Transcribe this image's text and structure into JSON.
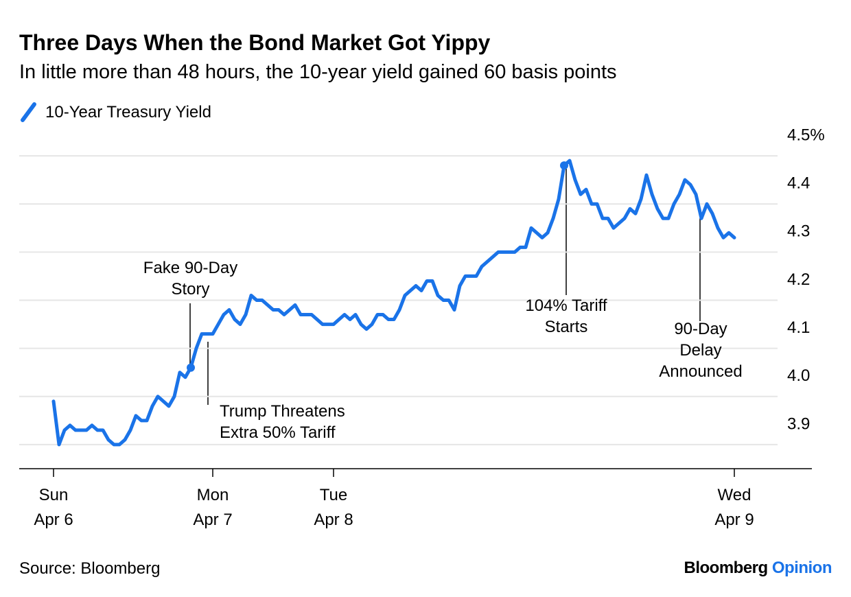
{
  "chart_data": {
    "type": "line",
    "title": "Three Days When the Bond Market Got Yippy",
    "subtitle": "In little more than 48 hours, the 10-year yield gained 60 basis points",
    "source": "Source: Bloomberg",
    "brand": [
      "Bloomberg",
      "Opinion"
    ],
    "categories": [
      "Sun Apr 6",
      null,
      null,
      null,
      null,
      null,
      null,
      null,
      null,
      null,
      null,
      null,
      null,
      null,
      null,
      null,
      null,
      null,
      null,
      null,
      null,
      null,
      null,
      null,
      null,
      null,
      null,
      null,
      null,
      "Mon Apr 7",
      null,
      null,
      null,
      null,
      null,
      null,
      null,
      null,
      null,
      null,
      null,
      null,
      null,
      null,
      null,
      null,
      null,
      null,
      null,
      null,
      null,
      "Tue Apr 8",
      null,
      null,
      null,
      null,
      null,
      null,
      null,
      null,
      null,
      null,
      null,
      null,
      null,
      null,
      null,
      null,
      null,
      null,
      null,
      null,
      null,
      null,
      null,
      null,
      null,
      null,
      null,
      null,
      null,
      null,
      null,
      null,
      null,
      null,
      null,
      null,
      null,
      null,
      null,
      null,
      null,
      null,
      null,
      null,
      null,
      null,
      null,
      null,
      null,
      null,
      null,
      null,
      null,
      null,
      null,
      null,
      null,
      null,
      null,
      null,
      null,
      null,
      null,
      null,
      null,
      null,
      null,
      null,
      null,
      null,
      null,
      null,
      "Wed Apr 9"
    ],
    "series": [
      {
        "name": "10-Year Treasury Yield",
        "color": "#1a73e8",
        "values": [
          3.99,
          3.9,
          3.93,
          3.94,
          3.93,
          3.93,
          3.93,
          3.94,
          3.93,
          3.93,
          3.91,
          3.9,
          3.9,
          3.91,
          3.93,
          3.96,
          3.95,
          3.95,
          3.98,
          4.0,
          3.99,
          3.98,
          4.0,
          4.05,
          4.04,
          4.06,
          4.1,
          4.13,
          4.13,
          4.13,
          4.15,
          4.17,
          4.18,
          4.16,
          4.15,
          4.17,
          4.21,
          4.2,
          4.2,
          4.19,
          4.18,
          4.18,
          4.17,
          4.18,
          4.19,
          4.17,
          4.17,
          4.17,
          4.16,
          4.15,
          4.15,
          4.15,
          4.16,
          4.17,
          4.16,
          4.17,
          4.15,
          4.14,
          4.15,
          4.17,
          4.17,
          4.16,
          4.16,
          4.18,
          4.21,
          4.22,
          4.23,
          4.22,
          4.24,
          4.24,
          4.21,
          4.2,
          4.2,
          4.18,
          4.23,
          4.25,
          4.25,
          4.25,
          4.27,
          4.28,
          4.29,
          4.3,
          4.3,
          4.3,
          4.3,
          4.31,
          4.31,
          4.35,
          4.34,
          4.33,
          4.34,
          4.37,
          4.41,
          4.48,
          4.49,
          4.45,
          4.42,
          4.43,
          4.4,
          4.4,
          4.37,
          4.37,
          4.35,
          4.36,
          4.37,
          4.39,
          4.38,
          4.41,
          4.46,
          4.42,
          4.39,
          4.37,
          4.37,
          4.4,
          4.42,
          4.45,
          4.44,
          4.42,
          4.37,
          4.4,
          4.38,
          4.35,
          4.33,
          4.34,
          4.33
        ]
      }
    ],
    "annotations": [
      "Fake 90-Day Story",
      "Trump Threatens Extra 50% Tariff",
      "104% Tariff Starts",
      "90-Day Delay Announced"
    ],
    "ylim": [
      3.85,
      4.55
    ],
    "yticks": [
      3.9,
      {
        "value": 4,
        "label": "4.0"
      },
      4.1,
      4.2,
      4.3,
      4.4,
      {
        "value": 4.5,
        "label": "4.5%"
      }
    ],
    "grid": true
  }
}
